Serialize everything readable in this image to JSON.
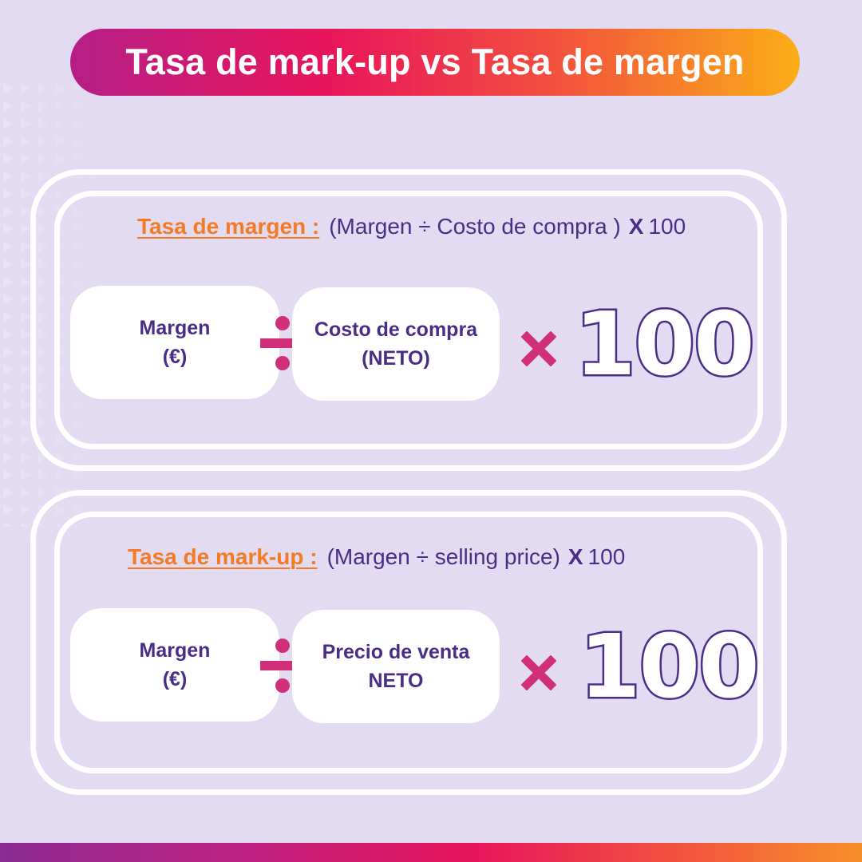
{
  "title": "Tasa de mark-up vs Tasa de margen",
  "colors": {
    "background": "#e2dbf1",
    "accent_orange": "#f47a23",
    "purple_text": "#4a2d86",
    "magenta": "#d12f7a"
  },
  "sections": [
    {
      "label": "Tasa de margen :",
      "formula_open": "(Margen ÷ Costo de compra )",
      "formula_x": "X",
      "formula_factor": "100",
      "numerator": {
        "line1": "Margen",
        "line2": "(€)"
      },
      "denominator": {
        "line1": "Costo de compra",
        "line2": "(NETO)"
      },
      "divide_icon": "divide-icon",
      "times_icon": "multiply-icon",
      "big_number": "100"
    },
    {
      "label": "Tasa de mark-up :",
      "formula_open": "(Margen ÷ selling price)",
      "formula_x": "X",
      "formula_factor": "100",
      "numerator": {
        "line1": "Margen",
        "line2": "(€)"
      },
      "denominator": {
        "line1": "Precio de venta",
        "line2": "NETO"
      },
      "divide_icon": "divide-icon",
      "times_icon": "multiply-icon",
      "big_number": "100"
    }
  ]
}
